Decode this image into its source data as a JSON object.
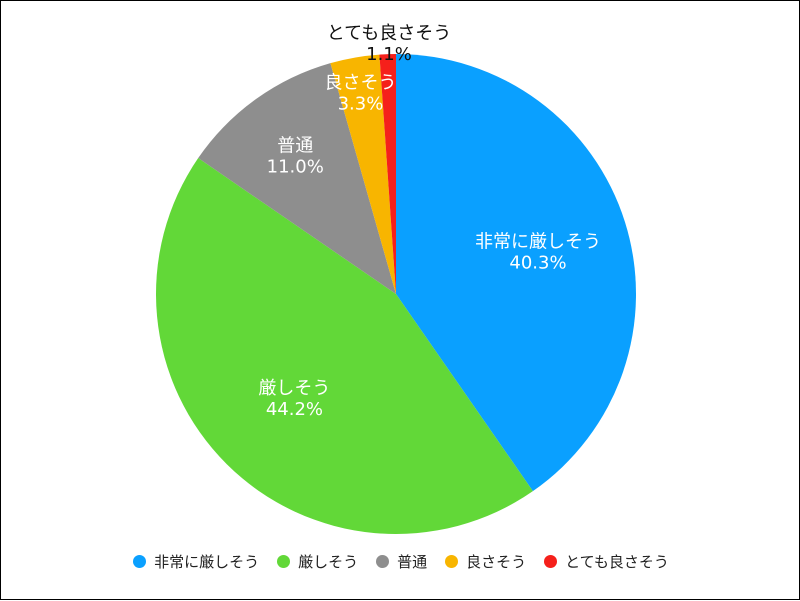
{
  "chart_data": {
    "type": "pie",
    "start_angle_deg": 0,
    "direction": "clockwise",
    "slices": [
      {
        "label": "非常に厳しそう",
        "value": 40.3,
        "value_label": "40.3%",
        "color": "#0aa0ff",
        "label_color": "#ffffff"
      },
      {
        "label": "厳しそう",
        "value": 44.2,
        "value_label": "44.2%",
        "color": "#62d838",
        "label_color": "#ffffff"
      },
      {
        "label": "普通",
        "value": 11.0,
        "value_label": "11.0%",
        "color": "#8e8e8e",
        "label_color": "#ffffff"
      },
      {
        "label": "良さそう",
        "value": 3.3,
        "value_label": "3.3%",
        "color": "#f8b500",
        "label_color": "#ffffff"
      },
      {
        "label": "とても良さそう",
        "value": 1.1,
        "value_label": "1.1%",
        "color": "#f5201b",
        "label_color": "#111111"
      }
    ],
    "legend_position": "bottom"
  }
}
